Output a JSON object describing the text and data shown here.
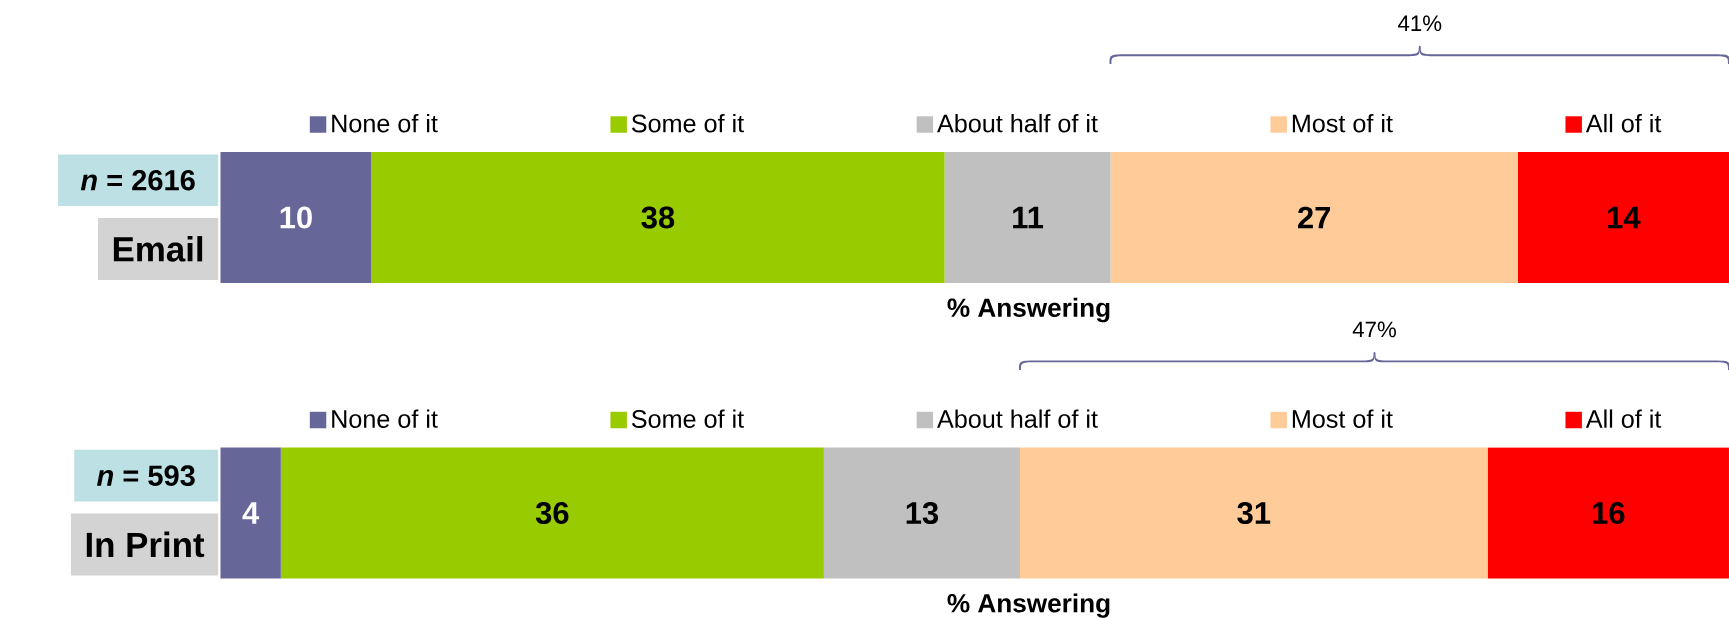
{
  "chart_data": [
    {
      "type": "bar",
      "orientation": "horizontal",
      "stacked": true,
      "categories": [
        "Email"
      ],
      "series": [
        {
          "name": "None of it",
          "color": "#666699",
          "values": [
            10
          ]
        },
        {
          "name": "Some of it",
          "color": "#99CC00",
          "values": [
            38
          ]
        },
        {
          "name": "About half of it",
          "color": "#C0C0C0",
          "values": [
            11
          ]
        },
        {
          "name": "Most of it",
          "color": "#FFCC99",
          "values": [
            27
          ]
        },
        {
          "name": "All of it",
          "color": "#FF0000",
          "values": [
            14
          ]
        }
      ],
      "xlabel": "% Answering",
      "tick_labels": "y",
      "legend": "top",
      "data_labels": true,
      "annotations": [
        "*n* = 2616",
        "41%"
      ]
    },
    {
      "type": "bar",
      "orientation": "horizontal",
      "stacked": true,
      "categories": [
        "In Print"
      ],
      "series": [
        {
          "name": "None of it",
          "color": "#666699",
          "values": [
            4
          ]
        },
        {
          "name": "Some of it",
          "color": "#99CC00",
          "values": [
            36
          ]
        },
        {
          "name": "About half of it",
          "color": "#C0C0C0",
          "values": [
            13
          ]
        },
        {
          "name": "Most of it",
          "color": "#FFCC99",
          "values": [
            31
          ]
        },
        {
          "name": "All of it",
          "color": "#FF0000",
          "values": [
            16
          ]
        }
      ],
      "xlabel": "% Answering",
      "tick_labels": "y",
      "legend": "top",
      "data_labels": true,
      "annotations": [
        "*n* = 593",
        "47%"
      ]
    }
  ]
}
